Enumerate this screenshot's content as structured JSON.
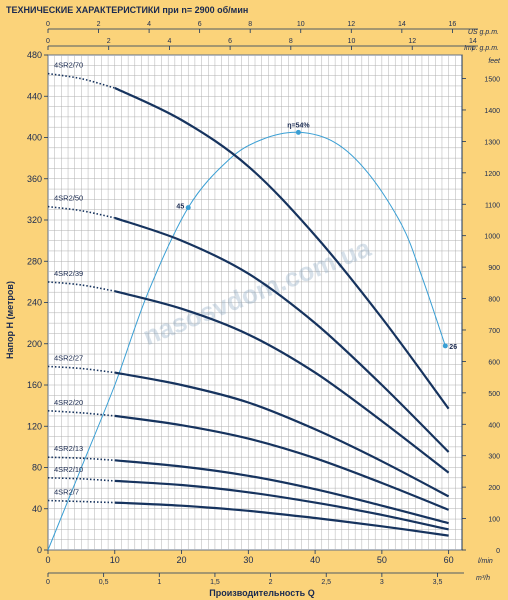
{
  "header": {
    "title": "ТЕХНИЧЕСКИЕ ХАРАКТЕРИСТИКИ при n= 2900 об/мин"
  },
  "chart_data": {
    "type": "line",
    "x_axis": {
      "label": "Производительность Q",
      "unit": "l/min",
      "range": [
        0,
        62
      ],
      "ticks": [
        "0",
        "10",
        "20",
        "30",
        "40",
        "50",
        "60"
      ]
    },
    "x_axis_m3h": {
      "unit": "m³/h",
      "ticks": [
        "0",
        "0,5",
        "1",
        "1,5",
        "2",
        "2,5",
        "3",
        "3,5"
      ]
    },
    "x_axis_us": {
      "unit": "US g.p.m.",
      "ticks": [
        "0",
        "2",
        "4",
        "6",
        "8",
        "10",
        "12",
        "14",
        "16"
      ]
    },
    "x_axis_imp": {
      "unit": "Imp. g.p.m.",
      "ticks": [
        "0",
        "2",
        "4",
        "6",
        "8",
        "10",
        "12",
        "14"
      ]
    },
    "y_axis": {
      "label": "Напор H (метров)",
      "range": [
        0,
        480
      ],
      "ticks": [
        "0",
        "40",
        "80",
        "120",
        "160",
        "200",
        "240",
        "280",
        "320",
        "360",
        "400",
        "440",
        "480"
      ]
    },
    "y_axis_feet": {
      "unit": "feet",
      "ticks": [
        "0",
        "100",
        "200",
        "300",
        "400",
        "500",
        "600",
        "700",
        "800",
        "900",
        "1000",
        "1100",
        "1200",
        "1300",
        "1400",
        "1500"
      ]
    },
    "series": [
      {
        "name": "4SR2/70",
        "x": [
          0,
          5,
          10,
          20,
          30,
          40,
          50,
          60
        ],
        "values": [
          462,
          457,
          448,
          417,
          372,
          305,
          225,
          137
        ]
      },
      {
        "name": "4SR2/50",
        "x": [
          0,
          5,
          10,
          20,
          30,
          40,
          50,
          60
        ],
        "values": [
          333,
          329,
          322,
          300,
          268,
          220,
          160,
          95
        ]
      },
      {
        "name": "4SR2/39",
        "x": [
          0,
          5,
          10,
          20,
          30,
          40,
          50,
          60
        ],
        "values": [
          260,
          257,
          251,
          234,
          209,
          172,
          125,
          75
        ]
      },
      {
        "name": "4SR2/27",
        "x": [
          0,
          5,
          10,
          20,
          30,
          40,
          50,
          60
        ],
        "values": [
          178,
          176,
          172,
          160,
          143,
          117,
          86,
          52
        ]
      },
      {
        "name": "4SR2/20",
        "x": [
          0,
          5,
          10,
          20,
          30,
          40,
          50,
          60
        ],
        "values": [
          135,
          133,
          130,
          121,
          108,
          89,
          65,
          39
        ]
      },
      {
        "name": "4SR2/13",
        "x": [
          0,
          5,
          10,
          20,
          30,
          40,
          50,
          60
        ],
        "values": [
          90,
          89,
          87,
          81,
          72,
          59,
          43,
          26
        ]
      },
      {
        "name": "4SR2/10",
        "x": [
          0,
          5,
          10,
          20,
          30,
          40,
          50,
          60
        ],
        "values": [
          70,
          69,
          67,
          63,
          56,
          46,
          34,
          20
        ]
      },
      {
        "name": "4SR2/7",
        "x": [
          0,
          5,
          10,
          20,
          30,
          40,
          50,
          60
        ],
        "values": [
          48,
          47,
          46,
          43,
          38,
          31,
          23,
          14
        ]
      }
    ],
    "efficiency": {
      "x": [
        0,
        5,
        10,
        15,
        21,
        27,
        32,
        37.5,
        43,
        48,
        53,
        56,
        59.5
      ],
      "values": [
        0,
        80,
        160,
        250,
        332,
        378,
        398,
        405,
        395,
        365,
        315,
        265,
        198
      ],
      "labels": [
        {
          "x": 21,
          "y": 332,
          "text": "45"
        },
        {
          "x": 37.5,
          "y": 405,
          "text": "η=54%"
        },
        {
          "x": 59.5,
          "y": 198,
          "text": "26"
        }
      ]
    },
    "colors": {
      "background": "#fbd37a",
      "plot": "#ffffff",
      "grid": "#b0b0b0",
      "curve": "#16335e",
      "efficiency": "#3a9fd4"
    },
    "watermark": "nasosvdom.com.ua",
    "grid": true
  }
}
